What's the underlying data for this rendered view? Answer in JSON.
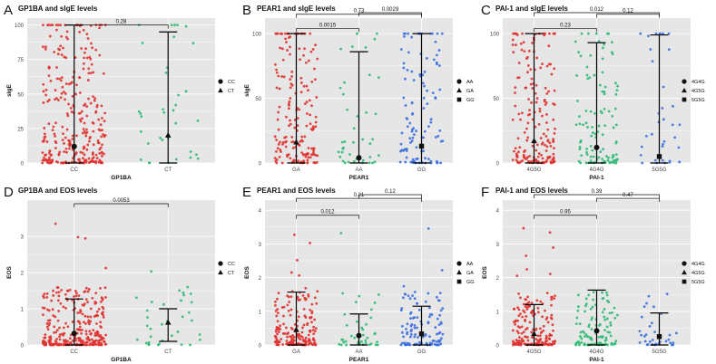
{
  "colors": {
    "panel_bg": "#e6e6e6",
    "grid": "#ffffff",
    "group1": "#e0322f",
    "group2": "#2dbb74",
    "group3": "#3b6fe0",
    "errorbar": "#000000"
  },
  "legend_title": "",
  "chart_data": [
    {
      "id": "A",
      "letter": "A",
      "type": "scatter",
      "title": "GP1BA and sIgE levels",
      "xlabel": "GP1BA",
      "ylabel": "sIgE",
      "ylim": [
        0,
        105
      ],
      "yticks": [
        "0",
        "25",
        "50",
        "75",
        "100"
      ],
      "ytick_values": [
        0,
        25,
        50,
        75,
        100
      ],
      "categories": [
        "CC",
        "CT"
      ],
      "legend": [
        "CC",
        "CT"
      ],
      "legend_shapes": [
        "circle",
        "triangle"
      ],
      "groups": [
        {
          "name": "CC",
          "n": 300,
          "mean": 12,
          "bar_low": 0,
          "bar_high": 100,
          "shape": "circle"
        },
        {
          "name": "CT",
          "n": 35,
          "mean": 20,
          "bar_low": 0,
          "bar_high": 95,
          "shape": "triangle"
        }
      ],
      "brackets": [
        {
          "from": 0,
          "to": 1,
          "y": 100,
          "label": "0.28"
        }
      ]
    },
    {
      "id": "B",
      "letter": "B",
      "type": "scatter",
      "title": "PEAR1 and sIgE levels",
      "xlabel": "PEAR1",
      "ylabel": "sIgE",
      "ylim": [
        0,
        112
      ],
      "yticks": [
        "0",
        "50",
        "100"
      ],
      "ytick_values": [
        0,
        50,
        100
      ],
      "categories": [
        "GA",
        "AA",
        "GG"
      ],
      "legend": [
        "AA",
        "GA",
        "GG"
      ],
      "legend_shapes": [
        "circle",
        "triangle",
        "square"
      ],
      "groups": [
        {
          "name": "GA",
          "n": 180,
          "mean": 16,
          "bar_low": 0,
          "bar_high": 100,
          "shape": "triangle"
        },
        {
          "name": "AA",
          "n": 40,
          "mean": 4,
          "bar_low": 0,
          "bar_high": 86,
          "shape": "circle"
        },
        {
          "name": "GG",
          "n": 110,
          "mean": 13,
          "bar_low": 0,
          "bar_high": 100,
          "shape": "square"
        }
      ],
      "brackets": [
        {
          "from": 0,
          "to": 1,
          "y": 104,
          "label": "0.0015"
        },
        {
          "from": 0,
          "to": 2,
          "y": 115,
          "label": "0.73"
        },
        {
          "from": 1,
          "to": 2,
          "y": 126,
          "label": "0.0029"
        }
      ]
    },
    {
      "id": "C",
      "letter": "C",
      "type": "scatter",
      "title": "PAI-1 and sIgE levels",
      "xlabel": "PAI-1",
      "ylabel": "",
      "ylim": [
        0,
        112
      ],
      "yticks": [
        "0",
        "50",
        "100"
      ],
      "ytick_values": [
        0,
        50,
        100
      ],
      "categories": [
        "4G5G",
        "4G4G",
        "5G5G"
      ],
      "legend": [
        "4G4G",
        "4G5G",
        "5G5G"
      ],
      "legend_shapes": [
        "circle",
        "triangle",
        "square"
      ],
      "groups": [
        {
          "name": "4G5G",
          "n": 180,
          "mean": 17,
          "bar_low": 0,
          "bar_high": 100,
          "shape": "triangle"
        },
        {
          "name": "4G4G",
          "n": 110,
          "mean": 12,
          "bar_low": 0,
          "bar_high": 93,
          "shape": "circle"
        },
        {
          "name": "5G5G",
          "n": 35,
          "mean": 5,
          "bar_low": 0,
          "bar_high": 99,
          "shape": "square"
        }
      ],
      "brackets": [
        {
          "from": 0,
          "to": 1,
          "y": 104,
          "label": "0.23"
        },
        {
          "from": 1,
          "to": 2,
          "y": 115,
          "label": "0.12"
        },
        {
          "from": 0,
          "to": 2,
          "y": 126,
          "label": "0.012"
        }
      ]
    },
    {
      "id": "D",
      "letter": "D",
      "type": "scatter",
      "title": "GP1BA and EOS levels",
      "xlabel": "GP1BA",
      "ylabel": "EOS",
      "ylim": [
        0,
        4.0
      ],
      "yticks": [
        "0",
        "1",
        "2",
        "3"
      ],
      "ytick_values": [
        0,
        1,
        2,
        3
      ],
      "categories": [
        "CC",
        "CT"
      ],
      "legend": [
        "CC",
        "CT"
      ],
      "legend_shapes": [
        "circle",
        "triangle"
      ],
      "groups": [
        {
          "name": "CC",
          "n": 300,
          "mean": 0.32,
          "bar_low": 0,
          "bar_high": 1.27,
          "shape": "circle"
        },
        {
          "name": "CT",
          "n": 35,
          "mean": 0.62,
          "bar_low": 0.1,
          "bar_high": 1.0,
          "shape": "triangle"
        }
      ],
      "brackets": [
        {
          "from": 0,
          "to": 1,
          "y": 3.9,
          "label": "0.0053"
        }
      ]
    },
    {
      "id": "E",
      "letter": "E",
      "type": "scatter",
      "title": "PEAR1 and EOS levels",
      "xlabel": "PEAR1",
      "ylabel": "EOS",
      "ylim": [
        0,
        4.3
      ],
      "yticks": [
        "0",
        "1",
        "2",
        "3",
        "4"
      ],
      "ytick_values": [
        0,
        1,
        2,
        3,
        4
      ],
      "categories": [
        "GA",
        "AA",
        "GG"
      ],
      "legend": [
        "AA",
        "GA",
        "GG"
      ],
      "legend_shapes": [
        "circle",
        "triangle",
        "square"
      ],
      "groups": [
        {
          "name": "GA",
          "n": 180,
          "mean": 0.45,
          "bar_low": 0.0,
          "bar_high": 1.57,
          "shape": "triangle"
        },
        {
          "name": "AA",
          "n": 40,
          "mean": 0.28,
          "bar_low": 0.0,
          "bar_high": 0.92,
          "shape": "circle"
        },
        {
          "name": "GG",
          "n": 110,
          "mean": 0.33,
          "bar_low": 0.0,
          "bar_high": 1.15,
          "shape": "square"
        }
      ],
      "brackets": [
        {
          "from": 0,
          "to": 1,
          "y": 3.85,
          "label": "0.012"
        },
        {
          "from": 0,
          "to": 2,
          "y": 4.35,
          "label": "0.21"
        },
        {
          "from": 1,
          "to": 2,
          "y": 4.85,
          "label": "0.12"
        }
      ]
    },
    {
      "id": "F",
      "letter": "F",
      "type": "scatter",
      "title": "PAI-1 and EOS levels",
      "xlabel": "PAI-1",
      "ylabel": "EOS",
      "ylim": [
        0,
        4.3
      ],
      "yticks": [
        "0",
        "1",
        "2",
        "3",
        "4"
      ],
      "ytick_values": [
        0,
        1,
        2,
        3,
        4
      ],
      "categories": [
        "4G5G",
        "4G4G",
        "5G5G"
      ],
      "legend": [
        "4G4G",
        "4G5G",
        "5G5G"
      ],
      "legend_shapes": [
        "circle",
        "triangle",
        "square"
      ],
      "groups": [
        {
          "name": "4G5G",
          "n": 180,
          "mean": 0.33,
          "bar_low": 0.0,
          "bar_high": 1.2,
          "shape": "triangle"
        },
        {
          "name": "4G4G",
          "n": 110,
          "mean": 0.42,
          "bar_low": 0.0,
          "bar_high": 1.63,
          "shape": "circle"
        },
        {
          "name": "5G5G",
          "n": 35,
          "mean": 0.25,
          "bar_low": 0.0,
          "bar_high": 0.95,
          "shape": "square"
        }
      ],
      "brackets": [
        {
          "from": 0,
          "to": 1,
          "y": 3.85,
          "label": "0.95"
        },
        {
          "from": 1,
          "to": 2,
          "y": 4.35,
          "label": "0.47"
        },
        {
          "from": 0,
          "to": 2,
          "y": 4.85,
          "label": "0.39"
        }
      ]
    }
  ]
}
